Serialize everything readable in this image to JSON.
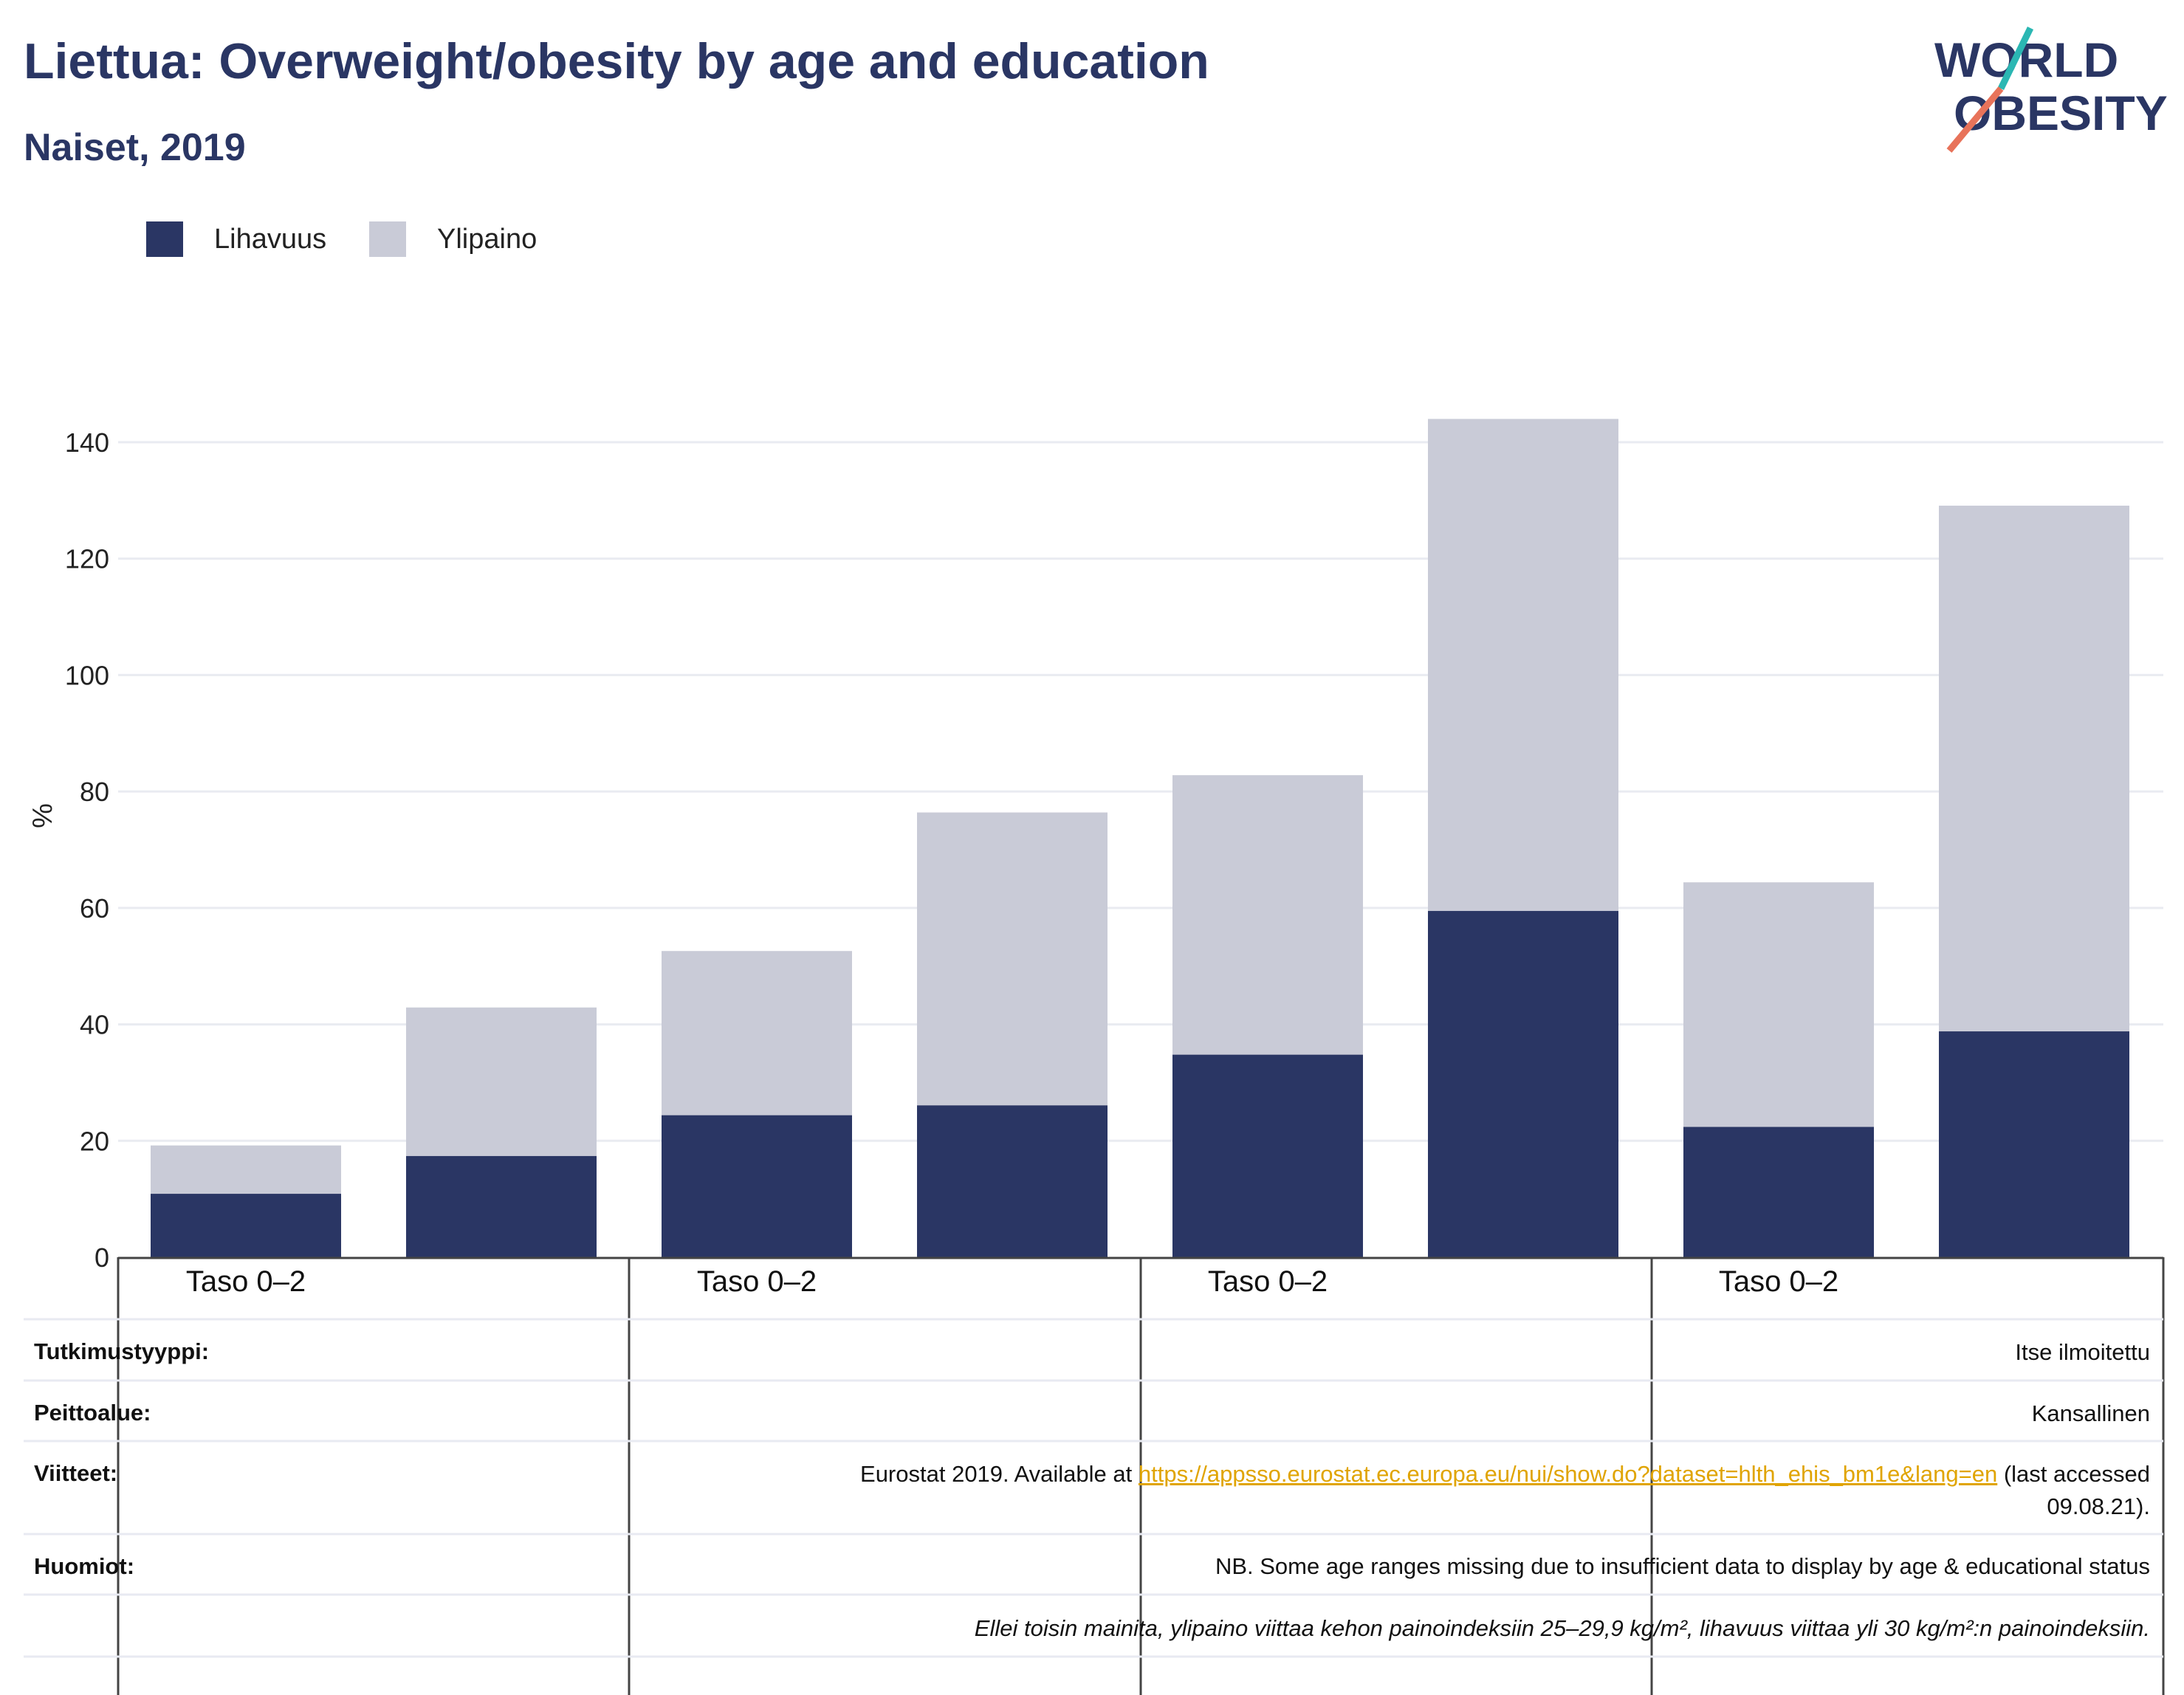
{
  "header": {
    "title": "Liettua: Overweight/obesity by age and education",
    "subtitle": "Naiset, 2019"
  },
  "logo": {
    "line1": "WORLD",
    "line2": "OBESITY"
  },
  "colors": {
    "obesity": "#2a3664",
    "overweight": "#c9cbd7",
    "title": "#2a3664",
    "link": "#e0a400"
  },
  "chart_data": {
    "type": "bar",
    "stacked": true,
    "ylabel": "%",
    "ylim": [
      0,
      145
    ],
    "yticks": [
      0,
      20,
      40,
      60,
      80,
      100,
      120,
      140
    ],
    "grid": true,
    "legend_position": "top-left",
    "categories": [
      "Taso 0–2",
      "",
      "Taso 0–2",
      "",
      "Taso 0–2",
      "",
      "Taso 0–2",
      ""
    ],
    "group_labels": [
      "Taso 0–2",
      "Taso 0–2",
      "Taso 0–2",
      "Taso 0–2"
    ],
    "series": [
      {
        "name": "Lihavuus",
        "values": [
          10.9,
          17.4,
          24.4,
          26.1,
          34.8,
          59.5,
          22.4,
          38.8
        ]
      },
      {
        "name": "Ylipaino",
        "values": [
          8.3,
          25.5,
          28.2,
          50.3,
          48.0,
          84.5,
          42.0,
          90.3
        ]
      }
    ]
  },
  "info": {
    "study_type_label": "Tutkimustyyppi:",
    "study_type_value": "Itse ilmoitettu",
    "coverage_label": "Peittoalue:",
    "coverage_value": "Kansallinen",
    "references_label": "Viitteet:",
    "references_prefix": "Eurostat 2019. Available at ",
    "references_link": "https://appsso.eurostat.ec.europa.eu/nui/show.do?dataset=hlth_ehis_bm1e&lang=en",
    "references_suffix": " (last accessed",
    "references_date": "09.08.21).",
    "notes_label": "Huomiot:",
    "notes_value": "NB. Some age ranges missing due to insufficient data to display by age & educational status",
    "definition_note": "Ellei toisin mainita, ylipaino viittaa kehon painoindeksiin 25–29,9 kg/m², lihavuus viittaa yli 30 kg/m²:n painoindeksiin."
  }
}
